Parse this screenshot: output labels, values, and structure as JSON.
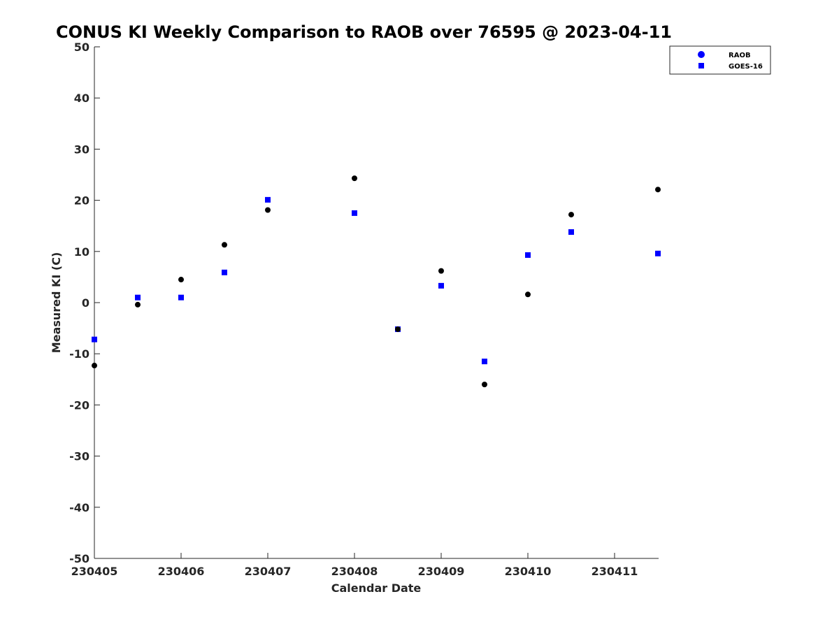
{
  "chart_data": {
    "type": "scatter",
    "title": "CONUS KI Weekly Comparison to RAOB over 76595 @ 2023-04-11",
    "xlabel": "Calendar Date",
    "ylabel": "Measured KI (C)",
    "xlim": [
      "230405",
      "230411.5"
    ],
    "ylim": [
      -50,
      50
    ],
    "x_ticks": [
      "230405",
      "230406",
      "230407",
      "230408",
      "230409",
      "230410",
      "230411"
    ],
    "y_ticks": [
      50,
      40,
      30,
      20,
      10,
      0,
      -10,
      -20,
      -30,
      -40,
      -50
    ],
    "grid": false,
    "legend_position": "top-right",
    "series": [
      {
        "name": "RAOB",
        "marker": "circle",
        "color": "#000000",
        "legend_color": "#0000ff",
        "points": [
          {
            "x": "230405 00Z",
            "y": -12.3
          },
          {
            "x": "230405 12Z",
            "y": -0.4
          },
          {
            "x": "230406 00Z",
            "y": 4.5
          },
          {
            "x": "230406 12Z",
            "y": 11.3
          },
          {
            "x": "230407 00Z",
            "y": 18.1
          },
          {
            "x": "230408 00Z",
            "y": 24.3
          },
          {
            "x": "230408 12Z",
            "y": -5.2
          },
          {
            "x": "230409 00Z",
            "y": 6.2
          },
          {
            "x": "230409 12Z",
            "y": -16.0
          },
          {
            "x": "230410 00Z",
            "y": 1.6
          },
          {
            "x": "230410 12Z",
            "y": 17.2
          },
          {
            "x": "230411 12Z",
            "y": 22.1
          }
        ]
      },
      {
        "name": "GOES-16",
        "marker": "square",
        "color": "#0000ff",
        "legend_color": "#0000ff",
        "points": [
          {
            "x": "230405 00Z",
            "y": -7.2
          },
          {
            "x": "230405 12Z",
            "y": 1.0
          },
          {
            "x": "230406 00Z",
            "y": 1.0
          },
          {
            "x": "230406 12Z",
            "y": 5.9
          },
          {
            "x": "230407 00Z",
            "y": 20.1
          },
          {
            "x": "230408 00Z",
            "y": 17.5
          },
          {
            "x": "230408 12Z",
            "y": -5.2
          },
          {
            "x": "230409 00Z",
            "y": 3.3
          },
          {
            "x": "230409 12Z",
            "y": -11.5
          },
          {
            "x": "230410 00Z",
            "y": 9.3
          },
          {
            "x": "230410 12Z",
            "y": 13.8
          },
          {
            "x": "230411 12Z",
            "y": 9.6
          }
        ]
      }
    ]
  }
}
